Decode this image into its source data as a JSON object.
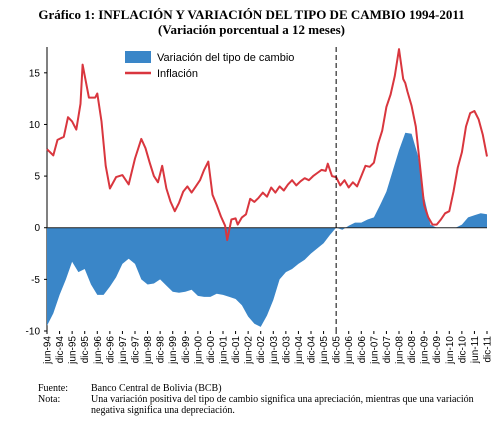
{
  "title": "Gráfico 1: INFLACIÓN Y VARIACIÓN DEL TIPO DE CAMBIO 1994-2011",
  "subtitle": "(Variación porcentual a 12 meses)",
  "notes": [
    {
      "label": "Fuente:",
      "text": "Banco Central de Bolivia (BCB)"
    },
    {
      "label": "Nota:",
      "text": "Una variación positiva del tipo de cambio significa una apreciación, mientras que una variación negativa significa una depreciación."
    }
  ],
  "colors": {
    "exchange_fill": "#3a86c8",
    "inflation_line": "#d9363e",
    "divider": "#000000"
  },
  "chart_data": {
    "type": "area",
    "ylim": [
      -10,
      17.5
    ],
    "yticks": [
      -10,
      -5,
      0,
      5,
      10,
      15
    ],
    "x_range": [
      "jun-94",
      "dic-11"
    ],
    "xticks": [
      "jun-94",
      "dic-94",
      "jun-95",
      "dic-95",
      "jun-96",
      "dic-96",
      "jun-97",
      "dic-97",
      "jun-98",
      "dic-98",
      "jun-99",
      "dic-99",
      "jun-00",
      "dic-00",
      "jun-01",
      "dic-01",
      "jun-02",
      "dic-02",
      "jun-03",
      "dic-03",
      "jun-04",
      "dic-04",
      "jun-05",
      "dic-05",
      "jun-06",
      "dic-06",
      "jun-07",
      "dic-07",
      "jun-08",
      "dic-08",
      "jun-09",
      "dic-09",
      "jun-10",
      "dic-10",
      "jun-11",
      "dic-11"
    ],
    "legend": {
      "position": "top-center"
    },
    "divider_at": "dic-05",
    "series": [
      {
        "name": "Variación del tipo de cambio",
        "kind": "area",
        "points": [
          [
            "jun-94",
            -9.5
          ],
          [
            "sep-94",
            -8.3
          ],
          [
            "dic-94",
            -6.5
          ],
          [
            "mar-95",
            -5.0
          ],
          [
            "jun-95",
            -3.3
          ],
          [
            "sep-95",
            -4.3
          ],
          [
            "dic-95",
            -4.0
          ],
          [
            "mar-96",
            -5.5
          ],
          [
            "jun-96",
            -6.5
          ],
          [
            "sep-96",
            -6.5
          ],
          [
            "dic-96",
            -5.7
          ],
          [
            "mar-97",
            -4.8
          ],
          [
            "jun-97",
            -3.5
          ],
          [
            "sep-97",
            -3.0
          ],
          [
            "dic-97",
            -3.5
          ],
          [
            "mar-98",
            -5.0
          ],
          [
            "jun-98",
            -5.5
          ],
          [
            "sep-98",
            -5.4
          ],
          [
            "dic-98",
            -5.0
          ],
          [
            "mar-99",
            -5.6
          ],
          [
            "jun-99",
            -6.2
          ],
          [
            "sep-99",
            -6.3
          ],
          [
            "dic-99",
            -6.2
          ],
          [
            "mar-00",
            -6.0
          ],
          [
            "jun-00",
            -6.6
          ],
          [
            "sep-00",
            -6.7
          ],
          [
            "dic-00",
            -6.7
          ],
          [
            "mar-01",
            -6.4
          ],
          [
            "jun-01",
            -6.5
          ],
          [
            "sep-01",
            -6.7
          ],
          [
            "dic-01",
            -6.9
          ],
          [
            "mar-02",
            -7.5
          ],
          [
            "jun-02",
            -8.6
          ],
          [
            "sep-02",
            -9.3
          ],
          [
            "dic-02",
            -9.6
          ],
          [
            "mar-03",
            -8.5
          ],
          [
            "jun-03",
            -7.0
          ],
          [
            "sep-03",
            -5.0
          ],
          [
            "dic-03",
            -4.3
          ],
          [
            "mar-04",
            -4.0
          ],
          [
            "jun-04",
            -3.5
          ],
          [
            "sep-04",
            -3.1
          ],
          [
            "dic-04",
            -2.5
          ],
          [
            "mar-05",
            -2.0
          ],
          [
            "jun-05",
            -1.5
          ],
          [
            "sep-05",
            -0.7
          ],
          [
            "dic-05",
            0.0
          ],
          [
            "mar-06",
            -0.2
          ],
          [
            "jun-06",
            0.2
          ],
          [
            "sep-06",
            0.5
          ],
          [
            "dic-06",
            0.5
          ],
          [
            "mar-07",
            0.8
          ],
          [
            "jun-07",
            1.0
          ],
          [
            "sep-07",
            2.2
          ],
          [
            "dic-07",
            3.5
          ],
          [
            "mar-08",
            5.5
          ],
          [
            "jun-08",
            7.5
          ],
          [
            "sep-08",
            9.2
          ],
          [
            "dic-08",
            9.1
          ],
          [
            "mar-09",
            7.0
          ],
          [
            "jun-09",
            3.0
          ],
          [
            "sep-09",
            0.3
          ],
          [
            "dic-09",
            0.0
          ],
          [
            "mar-10",
            0.0
          ],
          [
            "jun-10",
            0.0
          ],
          [
            "sep-10",
            0.0
          ],
          [
            "dic-10",
            0.3
          ],
          [
            "mar-11",
            1.0
          ],
          [
            "jun-11",
            1.2
          ],
          [
            "sep-11",
            1.4
          ],
          [
            "dic-11",
            1.3
          ]
        ]
      },
      {
        "name": "Inflación",
        "kind": "line",
        "points": [
          [
            "jun-94",
            7.6
          ],
          [
            "sep-94",
            7.0
          ],
          [
            "nov-94",
            8.5
          ],
          [
            "feb-95",
            8.8
          ],
          [
            "apr-95",
            10.7
          ],
          [
            "jun-95",
            10.3
          ],
          [
            "aug-95",
            9.5
          ],
          [
            "oct-95",
            12.0
          ],
          [
            "nov-95",
            15.8
          ],
          [
            "feb-96",
            12.6
          ],
          [
            "may-96",
            12.6
          ],
          [
            "jun-96",
            13.0
          ],
          [
            "aug-96",
            10.3
          ],
          [
            "oct-96",
            6.0
          ],
          [
            "dic-96",
            3.8
          ],
          [
            "mar-97",
            4.9
          ],
          [
            "jun-97",
            5.1
          ],
          [
            "sep-97",
            4.2
          ],
          [
            "dic-97",
            6.7
          ],
          [
            "mar-98",
            8.6
          ],
          [
            "may-98",
            7.7
          ],
          [
            "jul-98",
            6.3
          ],
          [
            "sep-98",
            5.0
          ],
          [
            "nov-98",
            4.4
          ],
          [
            "jan-99",
            6.0
          ],
          [
            "mar-99",
            3.8
          ],
          [
            "may-99",
            2.5
          ],
          [
            "jul-99",
            1.6
          ],
          [
            "sep-99",
            2.4
          ],
          [
            "nov-99",
            3.5
          ],
          [
            "jan-00",
            4.0
          ],
          [
            "mar-00",
            3.4
          ],
          [
            "may-00",
            4.0
          ],
          [
            "jul-00",
            4.6
          ],
          [
            "sep-00",
            5.6
          ],
          [
            "nov-00",
            6.4
          ],
          [
            "jan-01",
            3.2
          ],
          [
            "mar-01",
            2.2
          ],
          [
            "may-01",
            1.1
          ],
          [
            "jul-01",
            0.2
          ],
          [
            "aug-01",
            -1.2
          ],
          [
            "oct-01",
            0.8
          ],
          [
            "dic-01",
            0.9
          ],
          [
            "jan-02",
            0.3
          ],
          [
            "mar-02",
            1.0
          ],
          [
            "may-02",
            1.3
          ],
          [
            "jul-02",
            2.8
          ],
          [
            "sep-02",
            2.5
          ],
          [
            "nov-02",
            2.9
          ],
          [
            "jan-03",
            3.4
          ],
          [
            "mar-03",
            3.0
          ],
          [
            "may-03",
            3.9
          ],
          [
            "jul-03",
            3.4
          ],
          [
            "sep-03",
            4.0
          ],
          [
            "nov-03",
            3.6
          ],
          [
            "jan-04",
            4.2
          ],
          [
            "mar-04",
            4.6
          ],
          [
            "may-04",
            4.1
          ],
          [
            "jul-04",
            4.5
          ],
          [
            "sep-04",
            4.8
          ],
          [
            "nov-04",
            4.6
          ],
          [
            "jan-05",
            5.0
          ],
          [
            "mar-05",
            5.3
          ],
          [
            "may-05",
            5.6
          ],
          [
            "jul-05",
            5.5
          ],
          [
            "aug-05",
            6.2
          ],
          [
            "oct-05",
            5.0
          ],
          [
            "dic-05",
            4.9
          ],
          [
            "feb-06",
            4.1
          ],
          [
            "apr-06",
            4.6
          ],
          [
            "jun-06",
            3.9
          ],
          [
            "aug-06",
            4.4
          ],
          [
            "oct-06",
            4.0
          ],
          [
            "dic-06",
            5.0
          ],
          [
            "feb-07",
            6.0
          ],
          [
            "apr-07",
            5.9
          ],
          [
            "jun-07",
            6.3
          ],
          [
            "aug-07",
            8.1
          ],
          [
            "oct-07",
            9.4
          ],
          [
            "dic-07",
            11.7
          ],
          [
            "feb-08",
            12.9
          ],
          [
            "apr-08",
            14.7
          ],
          [
            "jun-08",
            17.3
          ],
          [
            "aug-08",
            14.4
          ],
          [
            "sep-08",
            14.0
          ],
          [
            "oct-08",
            13.2
          ],
          [
            "dic-08",
            11.8
          ],
          [
            "feb-09",
            9.8
          ],
          [
            "apr-09",
            6.0
          ],
          [
            "jun-09",
            2.2
          ],
          [
            "aug-09",
            1.0
          ],
          [
            "oct-09",
            0.3
          ],
          [
            "dic-09",
            0.3
          ],
          [
            "feb-10",
            0.8
          ],
          [
            "apr-10",
            1.4
          ],
          [
            "jun-10",
            1.6
          ],
          [
            "aug-10",
            3.5
          ],
          [
            "oct-10",
            5.8
          ],
          [
            "dic-10",
            7.3
          ],
          [
            "feb-11",
            9.8
          ],
          [
            "apr-11",
            11.1
          ],
          [
            "jun-11",
            11.3
          ],
          [
            "aug-11",
            10.5
          ],
          [
            "oct-11",
            9.0
          ],
          [
            "dic-11",
            6.9
          ]
        ]
      }
    ]
  }
}
